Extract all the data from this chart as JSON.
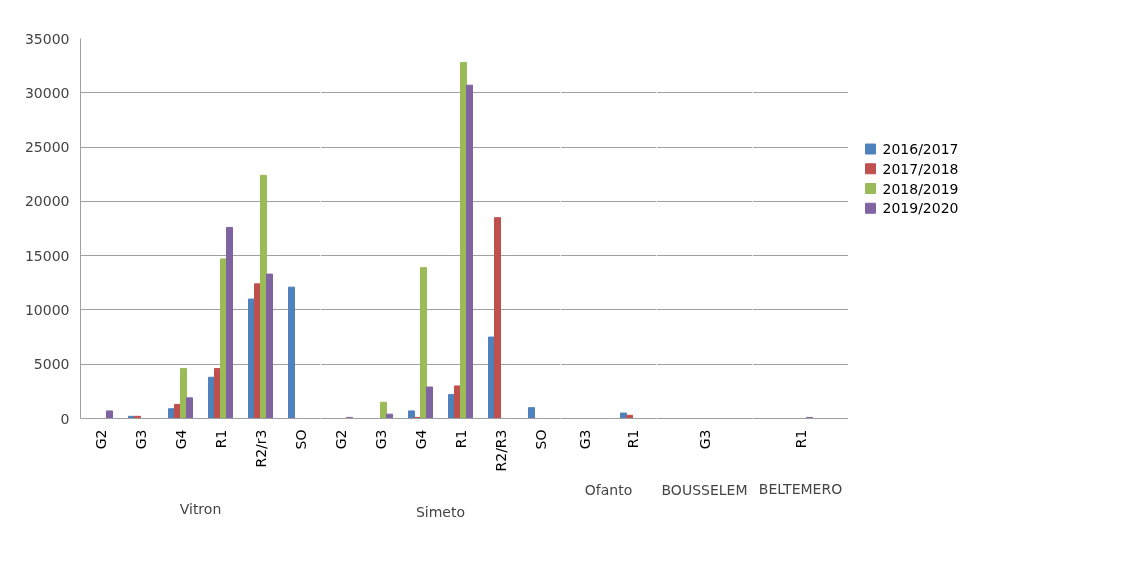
{
  "chart_data": [
    {
      "type": "bar",
      "xlabel": "Vitron",
      "categories": [
        "G2",
        "G3",
        "G4",
        "R1",
        "R2/r3",
        "SO"
      ],
      "ylim": [
        0,
        35000
      ],
      "yticks": [
        0,
        5000,
        10000,
        15000,
        20000,
        25000,
        30000,
        35000
      ],
      "grid": "y",
      "series": [
        {
          "color": "#4f81bd",
          "values": [
            0,
            200,
            900,
            3800,
            11000,
            12100
          ]
        },
        {
          "color": "#c0504d",
          "values": [
            0,
            200,
            1300,
            4600,
            12400,
            0
          ]
        },
        {
          "color": "#9bbb59",
          "values": [
            0,
            0,
            4600,
            14700,
            22400,
            0
          ]
        },
        {
          "color": "#8064a2",
          "values": [
            700,
            0,
            1900,
            17600,
            13300,
            0
          ]
        }
      ]
    },
    {
      "type": "bar",
      "xlabel": "Simeto",
      "categories": [
        "G2",
        "G3",
        "G4",
        "R1",
        "R2/R3",
        "SO"
      ],
      "ylim": [
        0,
        35000
      ],
      "yticks": [
        0,
        5000,
        10000,
        15000,
        20000,
        25000,
        30000,
        35000
      ],
      "grid": "y",
      "tick_labels": "x",
      "series": [
        {
          "color": "#4f81bd",
          "values": [
            0,
            0,
            700,
            2200,
            7500,
            1000
          ]
        },
        {
          "color": "#c0504d",
          "values": [
            0,
            0,
            100,
            3000,
            18500,
            0
          ]
        },
        {
          "color": "#9bbb59",
          "values": [
            0,
            1500,
            13900,
            32800,
            0,
            0
          ]
        },
        {
          "color": "#8064a2",
          "values": [
            100,
            400,
            2900,
            30700,
            0,
            0
          ]
        }
      ]
    },
    {
      "type": "bar",
      "xlabel": "Ofanto",
      "categories": [
        "G3",
        "R1"
      ],
      "ylim": [
        0,
        35000
      ],
      "yticks": [
        0,
        5000,
        10000,
        15000,
        20000,
        25000,
        30000,
        35000
      ],
      "grid": "y",
      "tick_labels": "x",
      "series": [
        {
          "color": "#4f81bd",
          "values": [
            0,
            500
          ]
        },
        {
          "color": "#c0504d",
          "values": [
            0,
            300
          ]
        },
        {
          "color": "#9bbb59",
          "values": [
            0,
            0
          ]
        },
        {
          "color": "#8064a2",
          "values": [
            0,
            0
          ]
        }
      ]
    },
    {
      "type": "bar",
      "xlabel": "BOUSSELEM",
      "categories": [
        "G3"
      ],
      "ylim": [
        0,
        35000
      ],
      "yticks": [
        0,
        5000,
        10000,
        15000,
        20000,
        25000,
        30000,
        35000
      ],
      "grid": "y",
      "tick_labels": "x",
      "series": [
        {
          "color": "#4f81bd",
          "values": [
            0
          ]
        },
        {
          "color": "#c0504d",
          "values": [
            0
          ]
        },
        {
          "color": "#9bbb59",
          "values": [
            0
          ]
        },
        {
          "color": "#8064a2",
          "values": [
            0
          ]
        }
      ]
    },
    {
      "type": "bar",
      "xlabel": "BELTEMERO",
      "categories": [
        "R1"
      ],
      "ylim": [
        0,
        35000
      ],
      "yticks": [
        0,
        5000,
        10000,
        15000,
        20000,
        25000,
        30000,
        35000
      ],
      "grid": "y",
      "tick_labels": "x",
      "legend": "right",
      "series": [
        {
          "name": "2016/2017",
          "color": "#4f81bd",
          "values": [
            0
          ]
        },
        {
          "name": "2017/2018",
          "color": "#c0504d",
          "values": [
            0
          ]
        },
        {
          "name": "2018/2019",
          "color": "#9bbb59",
          "values": [
            0
          ]
        },
        {
          "name": "2019/2020",
          "color": "#8064a2",
          "values": [
            100
          ]
        }
      ]
    }
  ]
}
